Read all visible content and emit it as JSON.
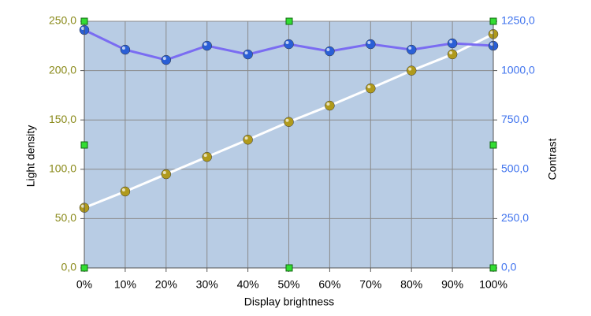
{
  "chart_data": {
    "type": "line",
    "x_label": "Display brightness",
    "y_label": "Light density",
    "y2_label": "Contrast",
    "x": [
      0,
      10,
      20,
      30,
      40,
      50,
      60,
      70,
      80,
      90,
      100
    ],
    "xlim": [
      0,
      100
    ],
    "xticks": [
      {
        "value": 0,
        "label": "0%"
      },
      {
        "value": 10,
        "label": "10%"
      },
      {
        "value": 20,
        "label": "20%"
      },
      {
        "value": 30,
        "label": "30%"
      },
      {
        "value": 40,
        "label": "40%"
      },
      {
        "value": 50,
        "label": "50%"
      },
      {
        "value": 60,
        "label": "60%"
      },
      {
        "value": 70,
        "label": "70%"
      },
      {
        "value": 80,
        "label": "80%"
      },
      {
        "value": 90,
        "label": "90%"
      },
      {
        "value": 100,
        "label": "100%"
      }
    ],
    "ylim": [
      0,
      250
    ],
    "yticks": [
      {
        "value": 0,
        "label": "0,0"
      },
      {
        "value": 50,
        "label": "50,0"
      },
      {
        "value": 100,
        "label": "100,0"
      },
      {
        "value": 150,
        "label": "150,0"
      },
      {
        "value": 200,
        "label": "200,0"
      },
      {
        "value": 250,
        "label": "250,0"
      }
    ],
    "y2lim": [
      0,
      1250
    ],
    "y2ticks": [
      {
        "value": 0,
        "label": "0,0"
      },
      {
        "value": 250,
        "label": "250,0"
      },
      {
        "value": 500,
        "label": "500,0"
      },
      {
        "value": 750,
        "label": "750,0"
      },
      {
        "value": 1000,
        "label": "1000,0"
      },
      {
        "value": 1250,
        "label": "1250,0"
      }
    ],
    "grid": true,
    "series": [
      {
        "color": "#ffffff",
        "marker_color": "#b09a1c",
        "values": [
          61,
          77.5,
          95,
          112.5,
          130,
          148,
          164.5,
          182,
          200,
          216.5,
          237
        ]
      },
      {
        "color": "#7a6cf2",
        "marker_color": "#2a5fd6",
        "axis": "y2",
        "values": [
          1206,
          1106,
          1054,
          1126,
          1082,
          1134,
          1098,
          1134,
          1106,
          1138,
          1126
        ]
      }
    ]
  }
}
